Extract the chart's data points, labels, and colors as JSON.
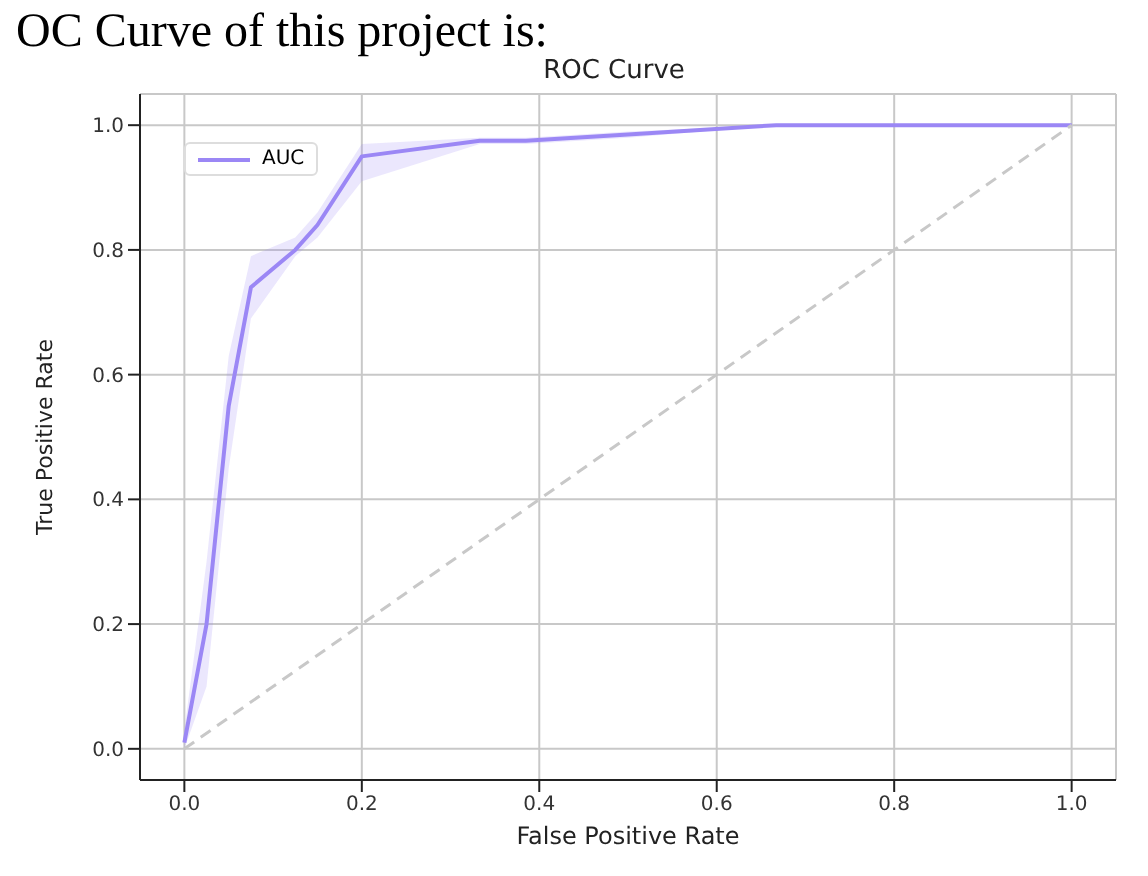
{
  "chart_data": {
    "type": "line",
    "title": "ROC Curve",
    "xlabel": "False Positive Rate",
    "ylabel": "True Positive Rate",
    "annotations": [
      "OC Curve of this project is:"
    ],
    "xlim": [
      -0.05,
      1.05
    ],
    "xticks": [
      {
        "value": 0,
        "label": "0.0"
      },
      0.2,
      0.4,
      0.6,
      0.8,
      {
        "value": 1,
        "label": "1.0"
      }
    ],
    "ylim": [
      -0.05,
      1.05
    ],
    "yticks": [
      {
        "value": 0,
        "label": "0.0"
      },
      0.2,
      0.4,
      0.6,
      0.8,
      {
        "value": 1,
        "label": "1.0"
      }
    ],
    "grid": true,
    "legend": "top left",
    "series": [
      {
        "name": "AUC",
        "color": "#9b87f5",
        "x": [
          0,
          0.025,
          0.05,
          0.075,
          0.125,
          0.15,
          0.2,
          0.333,
          0.385,
          0.5,
          0.667,
          1.0
        ],
        "values": [
          0.01,
          0.2,
          0.55,
          0.74,
          0.8,
          0.84,
          0.95,
          0.975,
          0.975,
          0.985,
          1.0,
          1.0
        ],
        "lower": [
          0.0,
          0.1,
          0.45,
          0.69,
          0.79,
          0.82,
          0.91,
          0.97,
          0.97,
          0.98,
          1.0,
          1.0
        ],
        "upper": [
          0.03,
          0.3,
          0.63,
          0.79,
          0.82,
          0.86,
          0.97,
          0.98,
          0.98,
          0.99,
          1.0,
          1.0
        ]
      },
      {
        "color": "#c8c8c8",
        "line_style": "dashed",
        "x": [
          0,
          1
        ],
        "values": [
          0,
          1
        ]
      }
    ]
  }
}
